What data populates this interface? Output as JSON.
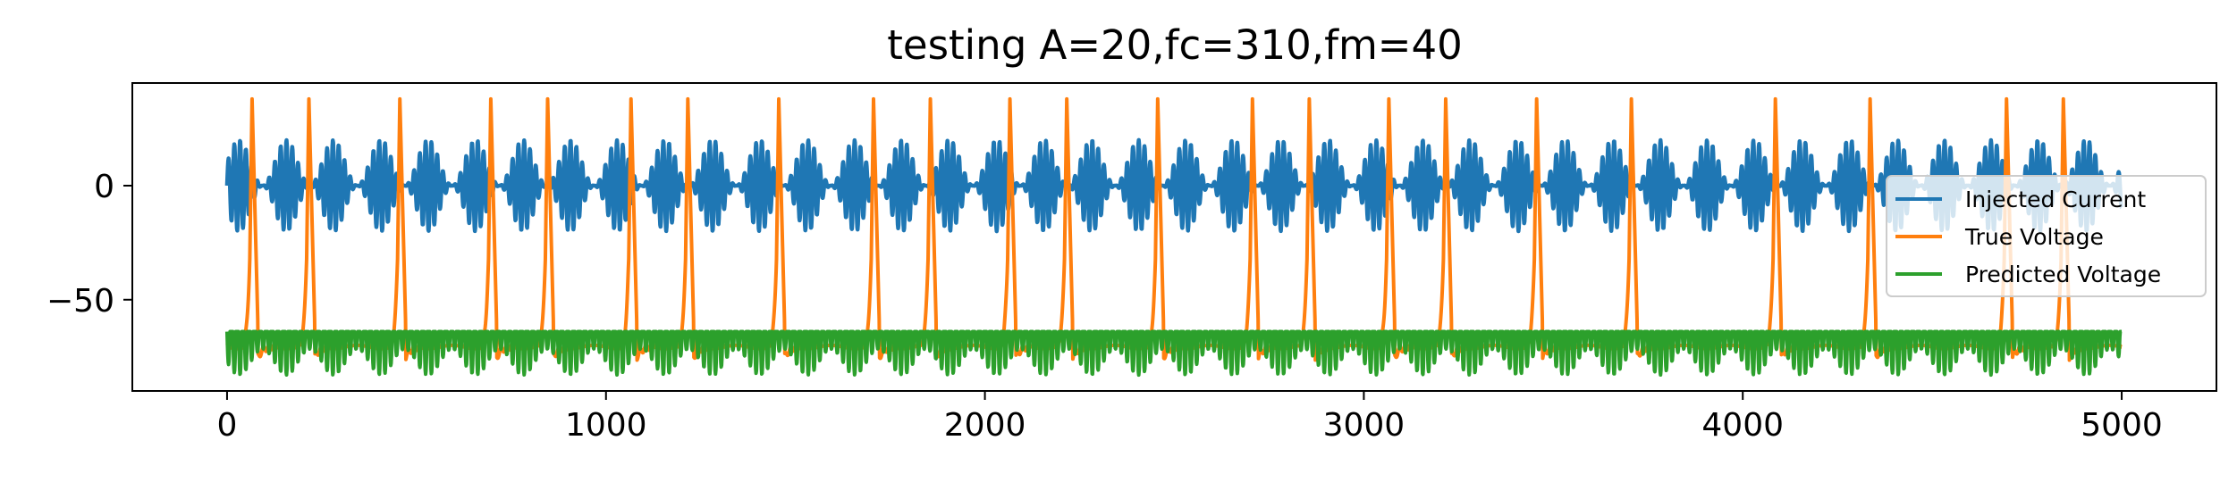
{
  "chart_data": {
    "type": "line",
    "title": "testing A=20,fc=310,fm=40",
    "xlabel": "",
    "ylabel": "",
    "xlim": [
      -250,
      5250
    ],
    "ylim": [
      -90,
      45
    ],
    "x_ticks": [
      0,
      1000,
      2000,
      3000,
      4000,
      5000
    ],
    "x_tick_labels": [
      "0",
      "1000",
      "2000",
      "3000",
      "4000",
      "5000"
    ],
    "y_ticks": [
      0,
      -50
    ],
    "y_tick_labels": [
      "0",
      "−50"
    ],
    "grid": false,
    "legend_position": "right",
    "x_range": [
      0,
      5000
    ],
    "series": [
      {
        "name": "Injected Current",
        "color": "#1f77b4",
        "amplitude": 20,
        "carrier_frequency": 310,
        "modulation_frequency": 40
      },
      {
        "name": "True Voltage",
        "color": "#ff7f0e",
        "baseline": -70,
        "spike_peak": 38,
        "spike_times": [
          60,
          210,
          450,
          690,
          840,
          1060,
          1210,
          1450,
          1700,
          1850,
          2060,
          2210,
          2450,
          2700,
          2850,
          3060,
          3210,
          3450,
          3700,
          4080,
          4330,
          4690,
          4840
        ]
      },
      {
        "name": "Predicted Voltage",
        "color": "#2ca02c",
        "baseline": -64,
        "min": -83
      }
    ]
  }
}
